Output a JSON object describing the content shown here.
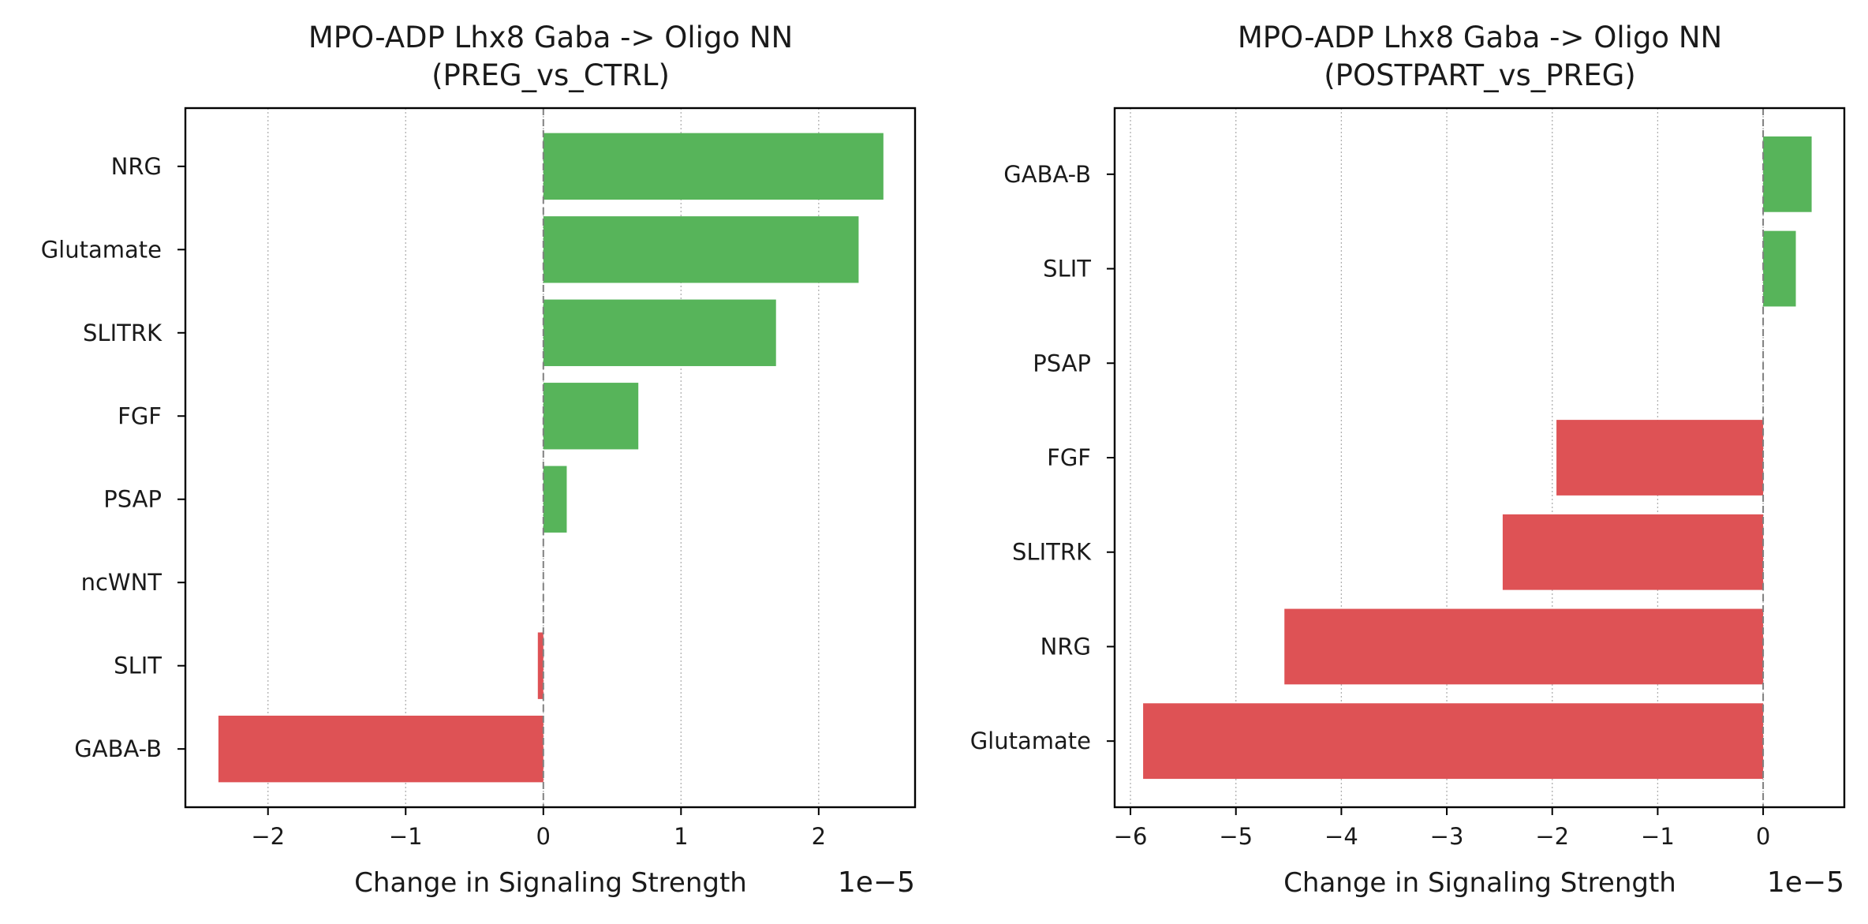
{
  "colors": {
    "positive": "#57b45a",
    "negative": "#de5255"
  },
  "chart_data": [
    {
      "type": "bar",
      "orientation": "horizontal",
      "title": "MPO-ADP Lhx8 Gaba -> Oligo NN\n(PREG_vs_CTRL)",
      "xlabel": "Change in Signaling Strength",
      "xscale_label": "1e−5",
      "xscale": 1e-05,
      "xlim": [
        -2.6,
        2.7
      ],
      "xticks": [
        -2,
        -1,
        0,
        1,
        2
      ],
      "xtick_labels": [
        "−2",
        "−1",
        "0",
        "1",
        "2"
      ],
      "grid": "x",
      "categories": [
        "NRG",
        "Glutamate",
        "SLITRK",
        "FGF",
        "PSAP",
        "ncWNT",
        "SLIT",
        "GABA-B"
      ],
      "values": [
        2.47,
        2.29,
        1.69,
        0.69,
        0.17,
        0.0,
        -0.04,
        -2.36
      ]
    },
    {
      "type": "bar",
      "orientation": "horizontal",
      "title": "MPO-ADP Lhx8 Gaba -> Oligo NN\n(POSTPART_vs_PREG)",
      "xlabel": "Change in Signaling Strength",
      "xscale_label": "1e−5",
      "xscale": 1e-05,
      "xlim": [
        -6.15,
        0.77
      ],
      "xticks": [
        -6,
        -5,
        -4,
        -3,
        -2,
        -1,
        0
      ],
      "xtick_labels": [
        "−6",
        "−5",
        "−4",
        "−3",
        "−2",
        "−1",
        "0"
      ],
      "grid": "x",
      "categories": [
        "GABA-B",
        "SLIT",
        "PSAP",
        "FGF",
        "SLITRK",
        "NRG",
        "Glutamate"
      ],
      "values": [
        0.46,
        0.31,
        0.0,
        -1.96,
        -2.47,
        -4.54,
        -5.88
      ]
    }
  ]
}
